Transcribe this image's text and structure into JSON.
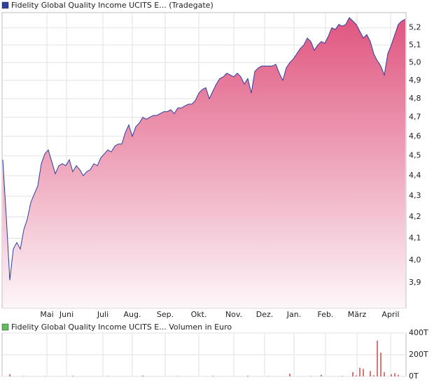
{
  "chart_data": [
    {
      "type": "area",
      "log_scale": true,
      "grid": true,
      "fill_top": "#e0557f",
      "fill_bottom": "#fdf6f9",
      "series": [
        {
          "name": "Fidelity Global Quality Income UCITS E... (Tradegate)",
          "color": "#2b3fa0",
          "values": [
            4.48,
            4.2,
            3.91,
            4.05,
            4.08,
            4.05,
            4.14,
            4.19,
            4.27,
            4.31,
            4.35,
            4.46,
            4.51,
            4.53,
            4.47,
            4.41,
            4.45,
            4.46,
            4.45,
            4.48,
            4.42,
            4.45,
            4.43,
            4.4,
            4.42,
            4.43,
            4.46,
            4.45,
            4.49,
            4.51,
            4.53,
            4.52,
            4.55,
            4.56,
            4.56,
            4.62,
            4.66,
            4.6,
            4.65,
            4.67,
            4.7,
            4.69,
            4.7,
            4.71,
            4.71,
            4.72,
            4.73,
            4.73,
            4.74,
            4.72,
            4.75,
            4.75,
            4.76,
            4.77,
            4.77,
            4.79,
            4.83,
            4.85,
            4.86,
            4.8,
            4.84,
            4.88,
            4.91,
            4.92,
            4.94,
            4.93,
            4.92,
            4.94,
            4.92,
            4.88,
            4.91,
            4.83,
            4.95,
            4.97,
            4.98,
            4.98,
            4.98,
            4.98,
            4.99,
            4.94,
            4.9,
            4.97,
            5.0,
            5.02,
            5.05,
            5.08,
            5.1,
            5.14,
            5.12,
            5.07,
            5.1,
            5.12,
            5.11,
            5.15,
            5.2,
            5.19,
            5.22,
            5.21,
            5.22,
            5.26,
            5.24,
            5.22,
            5.18,
            5.14,
            5.16,
            5.12,
            5.05,
            5.01,
            4.98,
            4.93,
            5.05,
            5.1,
            5.16,
            5.22,
            5.24,
            5.25
          ]
        }
      ],
      "xlim": [
        0,
        115
      ],
      "xticks": [
        {
          "value": 12.6,
          "label": "Mai"
        },
        {
          "value": 18.2,
          "label": "Juni"
        },
        {
          "value": 28.6,
          "label": "Juli"
        },
        {
          "value": 37,
          "label": "Aug."
        },
        {
          "value": 46.4,
          "label": "Sep."
        },
        {
          "value": 56,
          "label": "Okt."
        },
        {
          "value": 66,
          "label": "Nov."
        },
        {
          "value": 74.8,
          "label": "Dez."
        },
        {
          "value": 83.2,
          "label": "Jan."
        },
        {
          "value": 92.2,
          "label": "Feb."
        },
        {
          "value": 101.2,
          "label": "März"
        },
        {
          "value": 110.8,
          "label": "April"
        }
      ],
      "ylim": [
        3.79,
        5.29
      ],
      "yticks": [
        {
          "value": 3.9,
          "label": "3,9"
        },
        {
          "value": 4.0,
          "label": "4,0"
        },
        {
          "value": 4.1,
          "label": "4,1"
        },
        {
          "value": 4.2,
          "label": "4,2"
        },
        {
          "value": 4.3,
          "label": "4,3"
        },
        {
          "value": 4.4,
          "label": "4,4"
        },
        {
          "value": 4.5,
          "label": "4,5"
        },
        {
          "value": 4.6,
          "label": "4,6"
        },
        {
          "value": 4.7,
          "label": "4,7"
        },
        {
          "value": 4.8,
          "label": "4,8"
        },
        {
          "value": 4.9,
          "label": "4,9"
        },
        {
          "value": 5.0,
          "label": "5,0"
        },
        {
          "value": 5.1,
          "label": "5,1"
        },
        {
          "value": 5.2,
          "label": "5,2"
        }
      ]
    },
    {
      "type": "bar",
      "grid": true,
      "series": [
        {
          "name": "Fidelity Global Quality Income UCITS E... Volumen in Euro",
          "color": "#d04848",
          "legend_color": "#5cbf5c",
          "values": [
            0,
            0,
            20000,
            0,
            0,
            0,
            3000,
            0,
            0,
            0,
            0,
            0,
            3000,
            0,
            0,
            0,
            0,
            0,
            0,
            0,
            5000,
            0,
            0,
            0,
            0,
            0,
            0,
            0,
            0,
            0,
            3000,
            0,
            0,
            0,
            0,
            0,
            0,
            0,
            0,
            0,
            8000,
            0,
            0,
            0,
            0,
            0,
            0,
            0,
            0,
            0,
            3000,
            0,
            0,
            0,
            0,
            0,
            0,
            0,
            0,
            0,
            5000,
            0,
            0,
            0,
            0,
            0,
            0,
            0,
            0,
            0,
            6000,
            0,
            0,
            0,
            0,
            0,
            3000,
            0,
            0,
            0,
            0,
            0,
            25000,
            0,
            0,
            0,
            0,
            0,
            3000,
            0,
            0,
            15000,
            0,
            0,
            0,
            0,
            0,
            4000,
            0,
            0,
            40000,
            10000,
            80000,
            70000,
            0,
            50000,
            10000,
            330000,
            220000,
            40000,
            0,
            20000,
            30000,
            15000,
            0,
            0
          ]
        }
      ],
      "xlim": [
        0,
        115
      ],
      "ylim": [
        0,
        400000
      ],
      "yticks": [
        {
          "value": 0,
          "label": "0T"
        },
        {
          "value": 200000,
          "label": "200T"
        },
        {
          "value": 400000,
          "label": "400T"
        }
      ]
    }
  ]
}
